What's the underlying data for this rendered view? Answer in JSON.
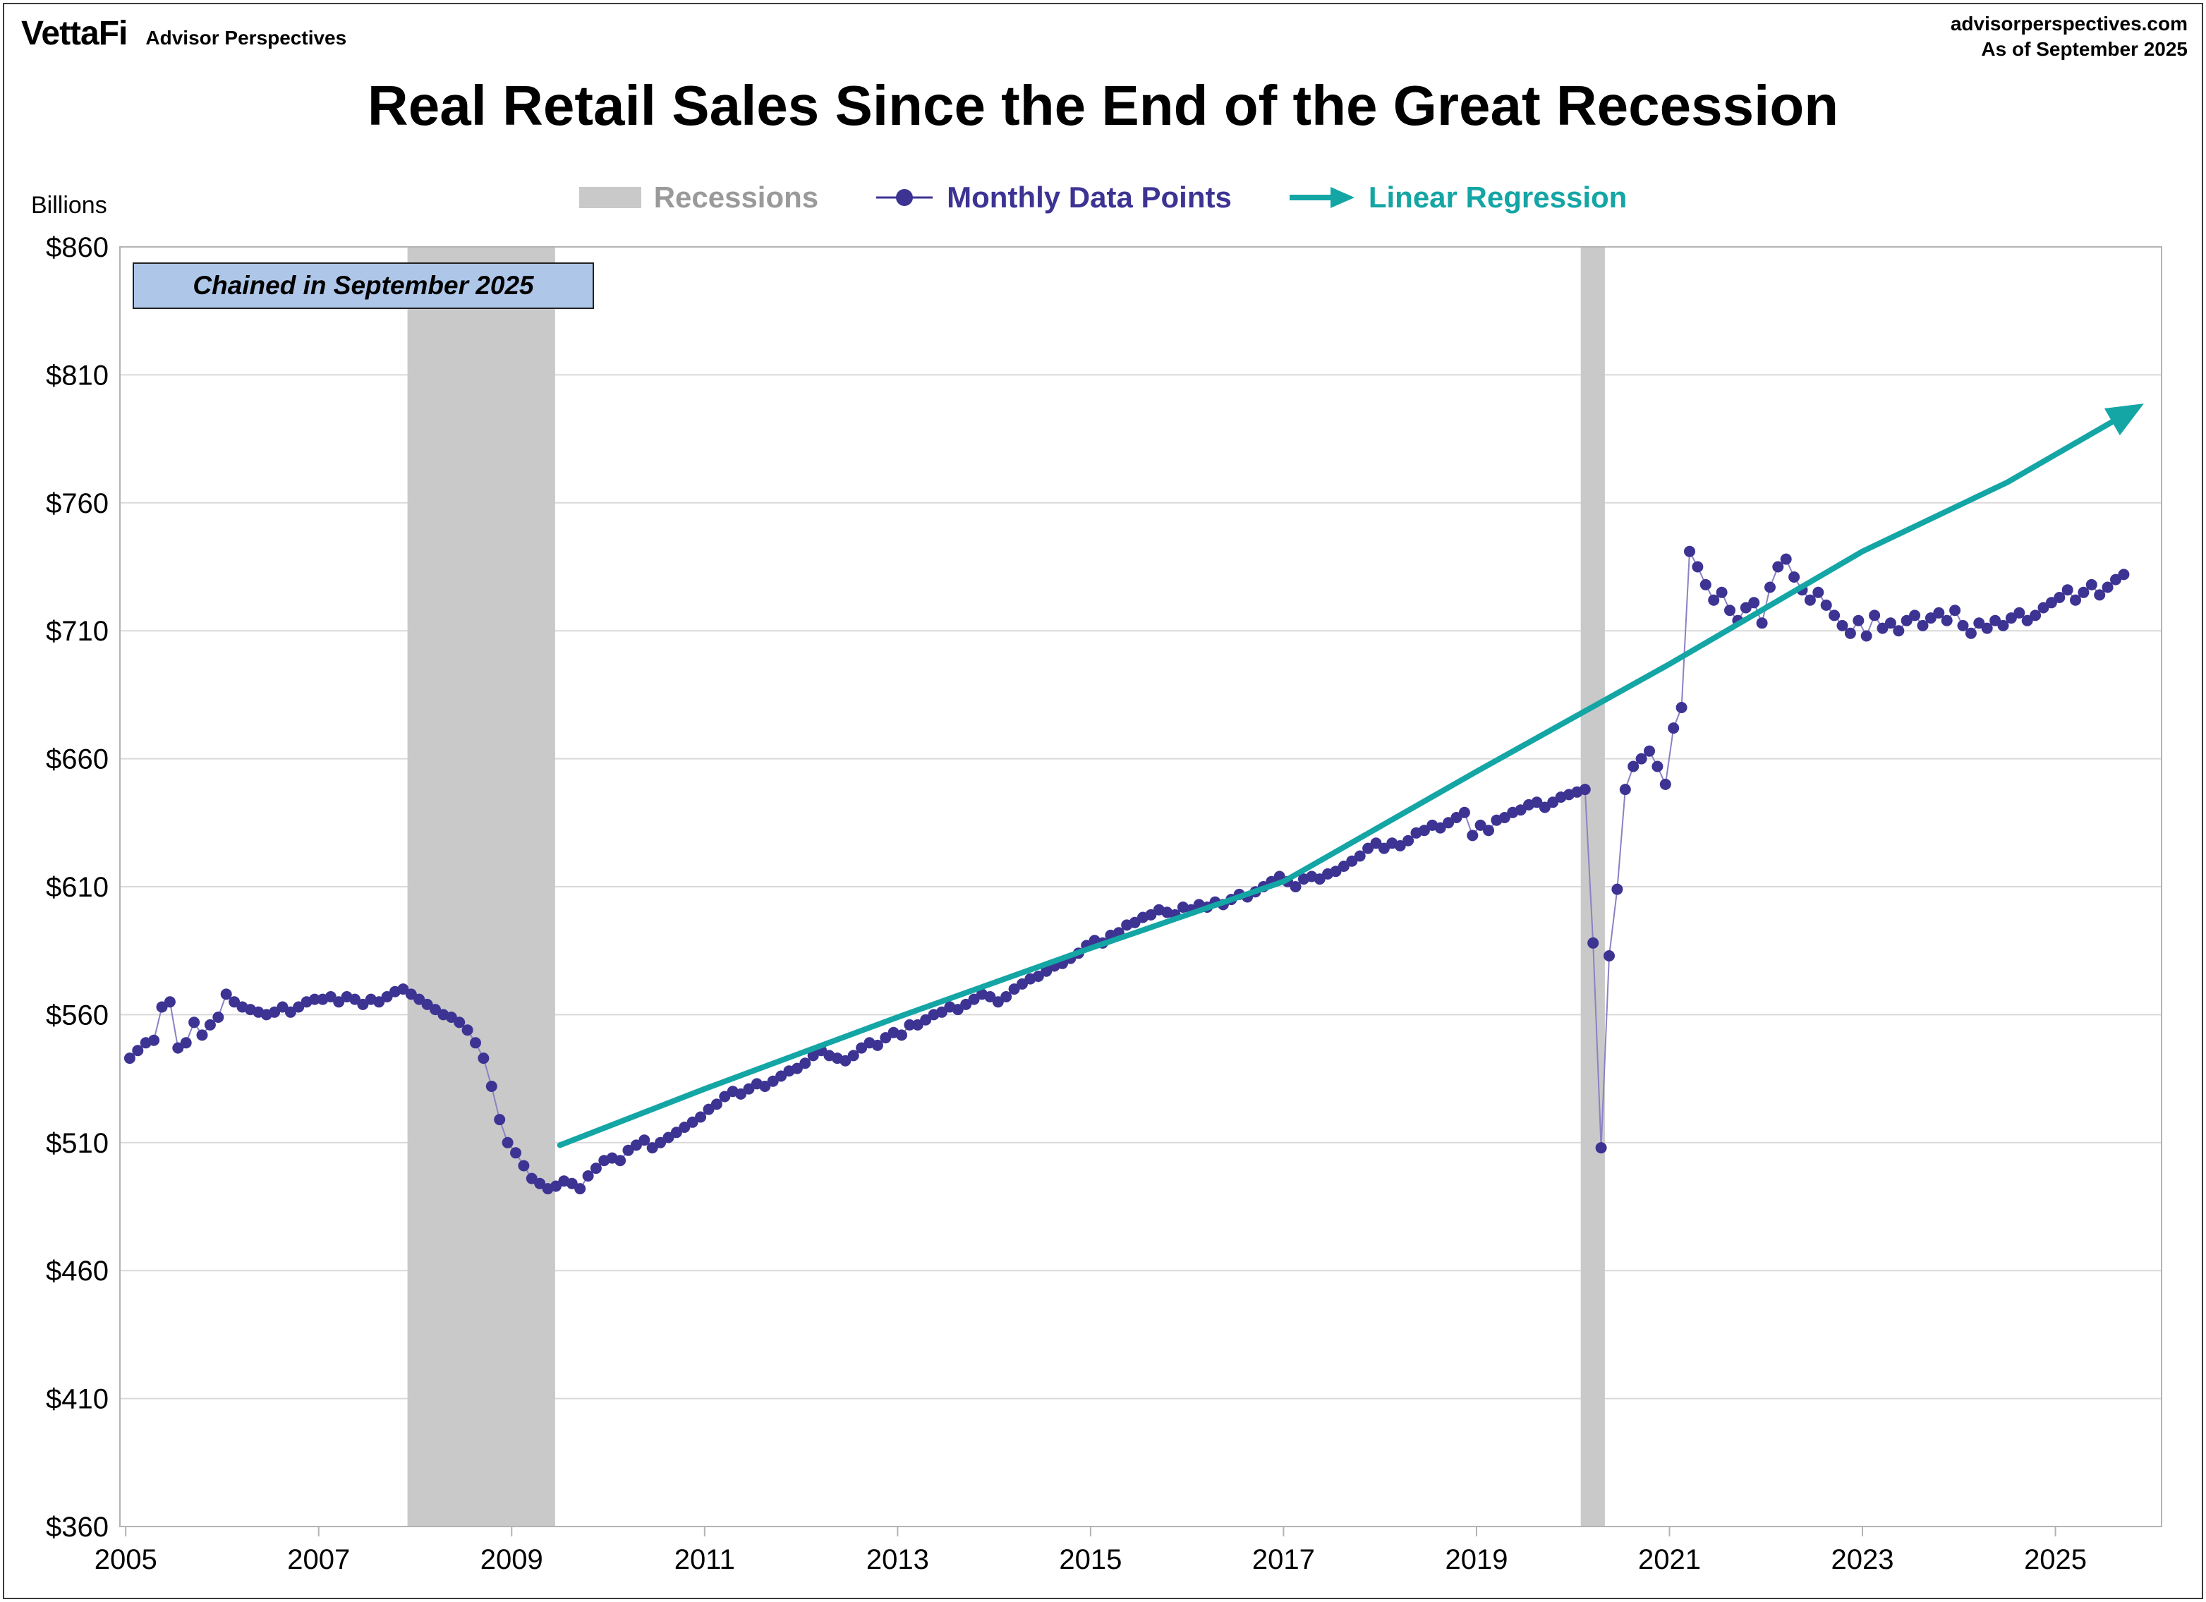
{
  "header": {
    "brand": "VettaFi",
    "brand_sub": "Advisor Perspectives",
    "site": "advisorperspectives.com",
    "as_of": "As of September 2025"
  },
  "title": "Real Retail Sales Since the End of the Great Recession",
  "note": "Chained in September 2025",
  "axis_unit": "Billions",
  "legend": {
    "recessions": "Recessions",
    "monthly": "Monthly Data Points",
    "regression": "Linear Regression"
  },
  "colors": {
    "dot": "#3d3393",
    "dot_line": "#8a82c4",
    "regression": "#14a5a5",
    "recession_band": "#c9c9c9",
    "grid": "#d9d9d9",
    "legend_recession_text": "#9a9a9a",
    "note_bg": "#aec6e8"
  },
  "chart_data": {
    "type": "scatter",
    "title": "Real Retail Sales Since the End of the Great Recession",
    "ylabel": "Billions",
    "unit": "billions of dollars, chained in September 2025",
    "frequency": "monthly",
    "start_year": 2005,
    "start_month": 1,
    "values": [
      543,
      546,
      549,
      550,
      563,
      565,
      547,
      549,
      557,
      552,
      556,
      559,
      568,
      565,
      563,
      562,
      561,
      560,
      561,
      563,
      561,
      563,
      565,
      566,
      566,
      567,
      565,
      567,
      566,
      564,
      566,
      565,
      567,
      569,
      570,
      568,
      566,
      564,
      562,
      560,
      559,
      557,
      554,
      549,
      543,
      532,
      519,
      510,
      506,
      501,
      496,
      494,
      492,
      493,
      495,
      494,
      492,
      497,
      500,
      503,
      504,
      503,
      507,
      509,
      511,
      508,
      510,
      512,
      514,
      516,
      518,
      520,
      523,
      525,
      528,
      530,
      529,
      531,
      533,
      532,
      534,
      536,
      538,
      539,
      541,
      544,
      546,
      544,
      543,
      542,
      544,
      547,
      549,
      548,
      551,
      553,
      552,
      556,
      556,
      558,
      560,
      561,
      563,
      562,
      564,
      566,
      568,
      567,
      565,
      567,
      570,
      572,
      574,
      575,
      577,
      579,
      580,
      582,
      584,
      587,
      589,
      588,
      591,
      592,
      595,
      596,
      598,
      599,
      601,
      600,
      599,
      602,
      601,
      603,
      602,
      604,
      603,
      605,
      607,
      606,
      608,
      610,
      612,
      614,
      612,
      610,
      613,
      614,
      613,
      615,
      616,
      618,
      620,
      622,
      625,
      627,
      625,
      627,
      626,
      628,
      631,
      632,
      634,
      633,
      635,
      637,
      639,
      630,
      634,
      632,
      636,
      637,
      639,
      640,
      642,
      643,
      641,
      643,
      645,
      646,
      647,
      648,
      588,
      508,
      583,
      609,
      648,
      657,
      660,
      663,
      657,
      650,
      672,
      680,
      741,
      735,
      728,
      722,
      725,
      718,
      714,
      719,
      721,
      713,
      727,
      735,
      738,
      731,
      726,
      722,
      725,
      720,
      716,
      712,
      709,
      714,
      708,
      716,
      711,
      713,
      710,
      714,
      716,
      712,
      715,
      717,
      714,
      718,
      712,
      709,
      713,
      711,
      714,
      712,
      715,
      717,
      714,
      716,
      719,
      721,
      723,
      726,
      722,
      725,
      728,
      724,
      727,
      730,
      732
    ],
    "ylim": [
      360,
      860
    ],
    "yticks": [
      360,
      410,
      460,
      510,
      560,
      610,
      660,
      710,
      760,
      810,
      860
    ],
    "ytick_labels": [
      "$360",
      "$410",
      "$460",
      "$510",
      "$560",
      "$610",
      "$660",
      "$710",
      "$760",
      "$810",
      "$860"
    ],
    "xticks": [
      2005,
      2007,
      2009,
      2011,
      2013,
      2015,
      2017,
      2019,
      2021,
      2023,
      2025
    ],
    "xlim": [
      2004.94,
      2026.1
    ],
    "grid": "horizontal only",
    "legend_position": "top center",
    "recession_bands": [
      [
        2007.92,
        2009.45
      ],
      [
        2020.08,
        2020.33
      ]
    ],
    "regression_points": [
      [
        2009.5,
        509
      ],
      [
        2011,
        531
      ],
      [
        2013,
        559
      ],
      [
        2015,
        586
      ],
      [
        2017,
        612
      ],
      [
        2019,
        655
      ],
      [
        2021,
        697
      ],
      [
        2023,
        741
      ],
      [
        2024.5,
        768
      ],
      [
        2025.65,
        793
      ]
    ]
  }
}
